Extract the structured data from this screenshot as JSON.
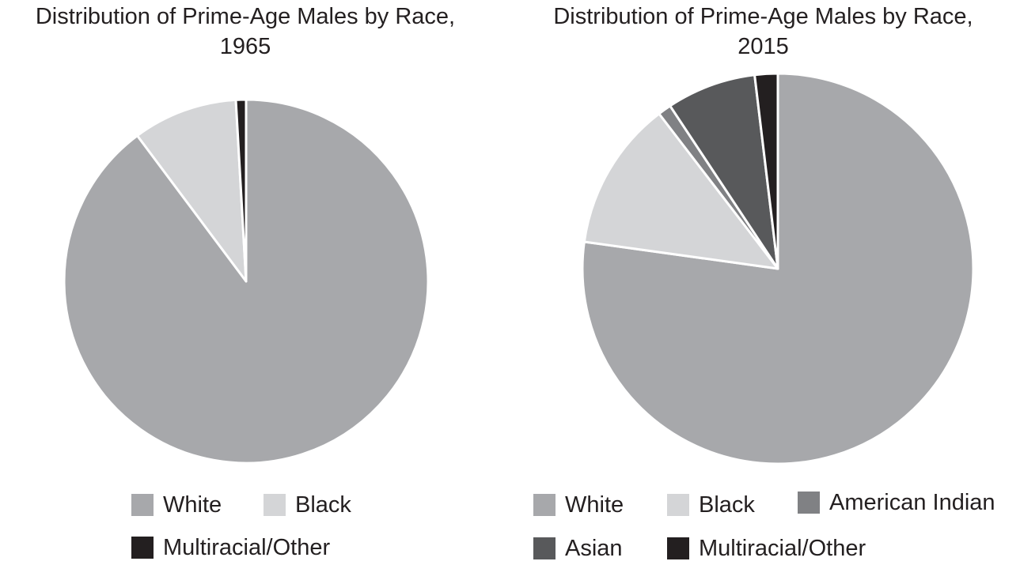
{
  "chart_data": [
    {
      "type": "pie",
      "title": [
        "Distribution of Prime-Age Males by Race,",
        "1965"
      ],
      "slices": [
        {
          "label": "White",
          "value": 89.8,
          "color": "#a7a8ab"
        },
        {
          "label": "Black",
          "value": 9.3,
          "color": "#d4d5d7"
        },
        {
          "label": "Multiracial/Other",
          "value": 0.9,
          "color": "#231f20"
        }
      ],
      "legend": [
        {
          "label": "White",
          "color": "#a7a8ab"
        },
        {
          "label": "Black",
          "color": "#d4d5d7"
        },
        {
          "label": "Multiracial/Other",
          "color": "#231f20"
        }
      ],
      "legend_placement": "bottom",
      "start_angle": "12 o'clock",
      "direction": "clockwise"
    },
    {
      "type": "pie",
      "title": [
        "Distribution of Prime-Age Males by Race,",
        "2015"
      ],
      "slices": [
        {
          "label": "White",
          "value": 77.2,
          "color": "#a7a8ab"
        },
        {
          "label": "Black",
          "value": 12.4,
          "color": "#d4d5d7"
        },
        {
          "label": "American Indian",
          "value": 1.1,
          "color": "#808184"
        },
        {
          "label": "Asian",
          "value": 7.4,
          "color": "#58595b"
        },
        {
          "label": "Multiracial/Other",
          "value": 1.9,
          "color": "#231f20"
        }
      ],
      "legend": [
        {
          "label": "White",
          "color": "#a7a8ab"
        },
        {
          "label": "Black",
          "color": "#d4d5d7"
        },
        {
          "label": "American Indian",
          "color": "#808184"
        },
        {
          "label": "Asian",
          "color": "#58595b"
        },
        {
          "label": "Multiracial/Other",
          "color": "#231f20"
        }
      ],
      "legend_placement": "bottom",
      "start_angle": "12 o'clock",
      "direction": "clockwise"
    }
  ]
}
